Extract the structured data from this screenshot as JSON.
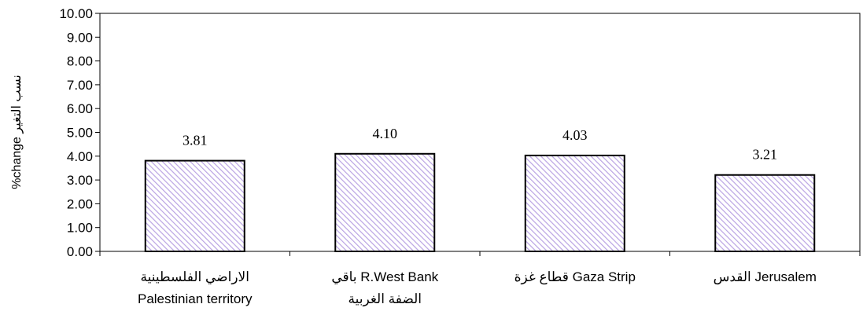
{
  "chart_data": {
    "type": "bar",
    "categories": [
      {
        "line1": "الاراضي الفلسطينية",
        "line2": "Palestinian territory"
      },
      {
        "line1": "باقي R.West Bank",
        "line2": "الضفة الغربية"
      },
      {
        "line1": "قطاع غزة Gaza Strip",
        "line2": ""
      },
      {
        "line1": "القدس Jerusalem",
        "line2": ""
      }
    ],
    "values": [
      3.81,
      4.1,
      4.03,
      3.21
    ],
    "data_labels": [
      "3.81",
      "4.10",
      "4.03",
      "3.21"
    ],
    "ylabel": "%change نسب التغير",
    "ylim": [
      0,
      10
    ],
    "yticks": [
      "0.00",
      "1.00",
      "2.00",
      "3.00",
      "4.00",
      "5.00",
      "6.00",
      "7.00",
      "8.00",
      "9.00",
      "10.00"
    ],
    "grid": false,
    "legend": "none",
    "bar_fill_pattern": "diagonal-hatch",
    "bar_hatch_color": "#b9a3e3",
    "bar_border_color": "#000000"
  }
}
